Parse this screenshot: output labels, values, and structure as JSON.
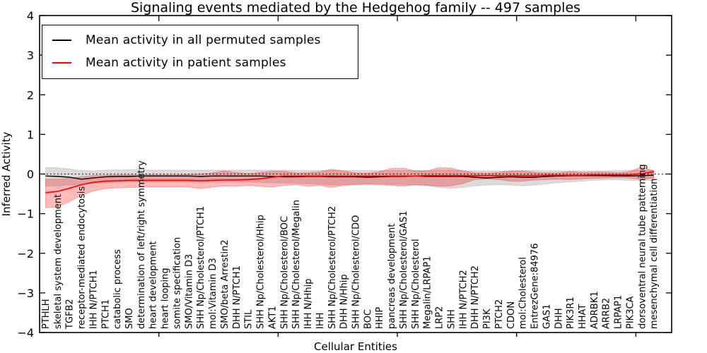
{
  "figure": {
    "background": "#ffffff",
    "accent_red": "#ff0000",
    "line_black": "#000000"
  },
  "chart_data": {
    "type": "line",
    "title": "Signaling events mediated by the Hedgehog family -- 497 samples",
    "xlabel": "Cellular Entities",
    "ylabel": "Inferred Activity",
    "ylim": [
      -4,
      4
    ],
    "yticks": [
      4,
      3,
      2,
      1,
      0,
      -1,
      -2,
      -3,
      -4
    ],
    "xticks_top_positions": [
      10,
      20,
      30,
      40,
      50
    ],
    "grid": false,
    "zero_line": "dotted",
    "legend_position": "upper left",
    "categories": [
      "PTHLH",
      "skeletal system development",
      "TGFB2",
      "receptor-mediated endocytosis",
      "IHH N/PTCH1",
      "PTCH1",
      "catabolic process",
      "SMO",
      "determination of left/right symmetry",
      "heart development",
      "heart looping",
      "somite specification",
      "SMO/Vitamin D3",
      "SHH Np/Cholesterol/PTCH1",
      "mol:Vitamin D3",
      "SMO/beta Arrestin2",
      "DHH N/PTCH1",
      "STIL",
      "SHH Np/Cholesterol/Hhip",
      "AKT1",
      "SHH Np/Cholesterol/BOC",
      "SHH Np/Cholesterol/Megalin",
      "IHH N/Hhip",
      "IHH",
      "SHH Np/Cholesterol/PTCH2",
      "DHH N/Hhip",
      "SHH Np/Cholesterol/CDO",
      "BOC",
      "HHIP",
      "pancreas development",
      "SHH Np/Cholesterol/GAS1",
      "SHH Np/Cholesterol",
      "Megalin/LRPAP1",
      "LRP2",
      "SHH",
      "IHH N/PTCH2",
      "DHH N/PTCH2",
      "PI3K",
      "PTCH2",
      "CDON",
      "mol:Cholesterol",
      "EntrezGene:84976",
      "GAS1",
      "DHH",
      "PIK3R1",
      "HHAT",
      "ADRBK1",
      "ARRB2",
      "LRPAP1",
      "PIK3CA",
      "dorsoventral neural tube patterning",
      "mesenchymal cell differentiation"
    ],
    "series": [
      {
        "name": "Mean activity in all permuted samples",
        "color": "#000000",
        "band_fill": "rgba(0,0,0,0.14)",
        "band_edge": "rgba(0,0,0,0.10)",
        "values": [
          -0.05,
          -0.06,
          -0.08,
          -0.13,
          -0.1,
          -0.07,
          -0.06,
          -0.06,
          -0.05,
          -0.05,
          -0.05,
          -0.05,
          -0.05,
          -0.06,
          -0.05,
          -0.05,
          -0.05,
          -0.05,
          -0.05,
          -0.06,
          -0.07,
          -0.07,
          -0.06,
          -0.06,
          -0.07,
          -0.07,
          -0.07,
          -0.08,
          -0.07,
          -0.06,
          -0.06,
          -0.05,
          -0.06,
          -0.06,
          -0.06,
          -0.06,
          -0.08,
          -0.1,
          -0.08,
          -0.07,
          -0.08,
          -0.08,
          -0.06,
          -0.05,
          -0.04,
          -0.04,
          -0.04,
          -0.04,
          -0.05,
          -0.05,
          -0.04,
          -0.03
        ],
        "band_upper": [
          0.16,
          0.16,
          0.13,
          0.09,
          0.08,
          0.1,
          0.11,
          0.11,
          0.11,
          0.1,
          0.1,
          0.1,
          0.1,
          0.1,
          0.1,
          0.1,
          0.1,
          0.1,
          0.1,
          0.1,
          0.1,
          0.09,
          0.09,
          0.09,
          0.1,
          0.09,
          0.09,
          0.09,
          0.09,
          0.09,
          0.09,
          0.09,
          0.09,
          0.1,
          0.1,
          0.09,
          0.08,
          0.08,
          0.08,
          0.08,
          0.09,
          0.09,
          0.08,
          0.08,
          0.08,
          0.08,
          0.08,
          0.08,
          0.09,
          0.1,
          0.1,
          0.1
        ],
        "band_lower": [
          -0.3,
          -0.3,
          -0.28,
          -0.26,
          -0.24,
          -0.22,
          -0.21,
          -0.2,
          -0.2,
          -0.2,
          -0.2,
          -0.2,
          -0.2,
          -0.21,
          -0.2,
          -0.2,
          -0.2,
          -0.2,
          -0.21,
          -0.22,
          -0.23,
          -0.24,
          -0.25,
          -0.26,
          -0.28,
          -0.27,
          -0.26,
          -0.25,
          -0.25,
          -0.26,
          -0.27,
          -0.28,
          -0.3,
          -0.34,
          -0.36,
          -0.34,
          -0.3,
          -0.28,
          -0.27,
          -0.28,
          -0.3,
          -0.28,
          -0.25,
          -0.22,
          -0.2,
          -0.18,
          -0.16,
          -0.15,
          -0.15,
          -0.16,
          -0.17,
          -0.16
        ]
      },
      {
        "name": "Mean activity in patient samples",
        "color": "#ff0000",
        "band_fill": "rgba(255,0,0,0.27)",
        "band_edge": "rgba(255,0,0,0.28)",
        "values": [
          -0.47,
          -0.44,
          -0.36,
          -0.27,
          -0.21,
          -0.18,
          -0.17,
          -0.16,
          -0.16,
          -0.16,
          -0.16,
          -0.16,
          -0.16,
          -0.17,
          -0.16,
          -0.15,
          -0.15,
          -0.14,
          -0.12,
          -0.08,
          -0.05,
          -0.05,
          -0.05,
          -0.05,
          -0.05,
          -0.05,
          -0.05,
          -0.05,
          -0.05,
          -0.05,
          -0.05,
          -0.05,
          -0.04,
          -0.04,
          -0.04,
          -0.04,
          -0.04,
          -0.04,
          -0.04,
          -0.04,
          -0.04,
          -0.04,
          -0.03,
          -0.03,
          -0.03,
          -0.03,
          -0.02,
          -0.02,
          -0.02,
          -0.02,
          0.01,
          0.06
        ],
        "band_upper": [
          -0.13,
          -0.13,
          -0.11,
          -0.07,
          -0.04,
          -0.03,
          -0.02,
          -0.02,
          -0.02,
          -0.02,
          -0.02,
          -0.02,
          -0.01,
          0.0,
          0.03,
          0.08,
          0.04,
          0.01,
          0.04,
          0.07,
          0.07,
          0.03,
          0.03,
          0.06,
          0.12,
          0.08,
          0.03,
          0.02,
          0.06,
          0.14,
          0.15,
          0.08,
          0.08,
          0.16,
          0.15,
          0.08,
          0.03,
          0.02,
          0.04,
          0.08,
          0.08,
          0.04,
          0.03,
          0.03,
          0.06,
          0.04,
          0.05,
          0.05,
          0.03,
          0.06,
          0.18,
          0.08
        ],
        "band_lower": [
          -0.85,
          -0.83,
          -0.7,
          -0.54,
          -0.43,
          -0.37,
          -0.35,
          -0.34,
          -0.33,
          -0.33,
          -0.33,
          -0.32,
          -0.33,
          -0.37,
          -0.33,
          -0.3,
          -0.31,
          -0.29,
          -0.31,
          -0.33,
          -0.29,
          -0.27,
          -0.31,
          -0.29,
          -0.34,
          -0.29,
          -0.27,
          -0.26,
          -0.27,
          -0.29,
          -0.31,
          -0.27,
          -0.28,
          -0.31,
          -0.3,
          -0.24,
          -0.14,
          -0.12,
          -0.14,
          -0.18,
          -0.18,
          -0.15,
          -0.14,
          -0.13,
          -0.14,
          -0.12,
          -0.11,
          -0.1,
          -0.09,
          -0.1,
          -0.14,
          -0.1
        ]
      }
    ]
  }
}
